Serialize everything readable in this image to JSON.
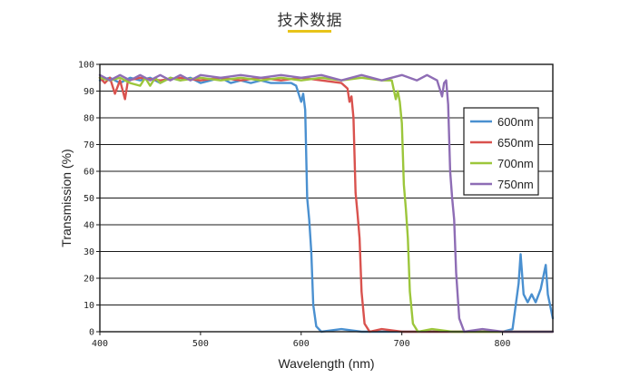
{
  "page": {
    "title": "技术数据",
    "accent_color": "#E8C41A"
  },
  "chart_data": {
    "type": "line",
    "title": "",
    "xlabel": "Wavelength (nm)",
    "ylabel": "Transmission (%)",
    "xlim": [
      400,
      850
    ],
    "ylim": [
      0,
      100
    ],
    "xticks": [
      400,
      500,
      600,
      700,
      800
    ],
    "yticks": [
      0,
      10,
      20,
      30,
      40,
      50,
      60,
      70,
      80,
      90,
      100
    ],
    "grid": "horizontal",
    "legend_position": "right",
    "series": [
      {
        "name": "600nm",
        "color": "#4A90D0",
        "points": [
          [
            400,
            94
          ],
          [
            410,
            95
          ],
          [
            420,
            93
          ],
          [
            430,
            95
          ],
          [
            440,
            94
          ],
          [
            450,
            95
          ],
          [
            460,
            93
          ],
          [
            470,
            95
          ],
          [
            480,
            94
          ],
          [
            490,
            95
          ],
          [
            500,
            93
          ],
          [
            510,
            94
          ],
          [
            520,
            95
          ],
          [
            530,
            93
          ],
          [
            540,
            94
          ],
          [
            550,
            93
          ],
          [
            560,
            94
          ],
          [
            570,
            93
          ],
          [
            580,
            93
          ],
          [
            590,
            93
          ],
          [
            595,
            92
          ],
          [
            600,
            86
          ],
          [
            602,
            89
          ],
          [
            604,
            83
          ],
          [
            606,
            50
          ],
          [
            608,
            42
          ],
          [
            610,
            30
          ],
          [
            612,
            10
          ],
          [
            615,
            2
          ],
          [
            620,
            0
          ],
          [
            640,
            1
          ],
          [
            660,
            0
          ],
          [
            700,
            0
          ],
          [
            750,
            0
          ],
          [
            800,
            0
          ],
          [
            810,
            1
          ],
          [
            816,
            18
          ],
          [
            818,
            29
          ],
          [
            821,
            14
          ],
          [
            825,
            11
          ],
          [
            829,
            14
          ],
          [
            833,
            11
          ],
          [
            838,
            16
          ],
          [
            843,
            25
          ],
          [
            845,
            14
          ],
          [
            850,
            5
          ]
        ]
      },
      {
        "name": "650nm",
        "color": "#D9524E",
        "points": [
          [
            400,
            95
          ],
          [
            405,
            93
          ],
          [
            410,
            95
          ],
          [
            415,
            89
          ],
          [
            420,
            94
          ],
          [
            425,
            87
          ],
          [
            428,
            94
          ],
          [
            440,
            95
          ],
          [
            460,
            94
          ],
          [
            480,
            95
          ],
          [
            500,
            94
          ],
          [
            520,
            95
          ],
          [
            540,
            94
          ],
          [
            560,
            95
          ],
          [
            580,
            94
          ],
          [
            600,
            95
          ],
          [
            620,
            94
          ],
          [
            640,
            93
          ],
          [
            646,
            91
          ],
          [
            648,
            86
          ],
          [
            650,
            88
          ],
          [
            652,
            80
          ],
          [
            654,
            52
          ],
          [
            656,
            44
          ],
          [
            658,
            35
          ],
          [
            660,
            15
          ],
          [
            663,
            3
          ],
          [
            668,
            0
          ],
          [
            680,
            1
          ],
          [
            700,
            0
          ],
          [
            750,
            0
          ],
          [
            800,
            0
          ],
          [
            850,
            0
          ]
        ]
      },
      {
        "name": "700nm",
        "color": "#9CC63B",
        "points": [
          [
            400,
            95
          ],
          [
            410,
            94
          ],
          [
            420,
            95
          ],
          [
            430,
            93
          ],
          [
            440,
            92
          ],
          [
            445,
            95
          ],
          [
            450,
            92
          ],
          [
            455,
            95
          ],
          [
            460,
            93
          ],
          [
            470,
            95
          ],
          [
            480,
            94
          ],
          [
            500,
            95
          ],
          [
            520,
            94
          ],
          [
            540,
            95
          ],
          [
            560,
            94
          ],
          [
            580,
            95
          ],
          [
            600,
            94
          ],
          [
            620,
            95
          ],
          [
            640,
            94
          ],
          [
            660,
            95
          ],
          [
            680,
            94
          ],
          [
            690,
            94
          ],
          [
            694,
            87
          ],
          [
            696,
            90
          ],
          [
            698,
            86
          ],
          [
            700,
            78
          ],
          [
            702,
            55
          ],
          [
            704,
            46
          ],
          [
            706,
            35
          ],
          [
            708,
            15
          ],
          [
            711,
            3
          ],
          [
            716,
            0
          ],
          [
            730,
            1
          ],
          [
            750,
            0
          ],
          [
            800,
            0
          ],
          [
            850,
            0
          ]
        ]
      },
      {
        "name": "750nm",
        "color": "#8E6DB5",
        "points": [
          [
            400,
            96
          ],
          [
            410,
            94
          ],
          [
            420,
            96
          ],
          [
            430,
            94
          ],
          [
            440,
            96
          ],
          [
            450,
            94
          ],
          [
            460,
            96
          ],
          [
            470,
            94
          ],
          [
            480,
            96
          ],
          [
            490,
            94
          ],
          [
            500,
            96
          ],
          [
            520,
            95
          ],
          [
            540,
            96
          ],
          [
            560,
            95
          ],
          [
            580,
            96
          ],
          [
            600,
            95
          ],
          [
            620,
            96
          ],
          [
            640,
            94
          ],
          [
            660,
            96
          ],
          [
            680,
            94
          ],
          [
            700,
            96
          ],
          [
            715,
            94
          ],
          [
            725,
            96
          ],
          [
            735,
            94
          ],
          [
            740,
            88
          ],
          [
            742,
            93
          ],
          [
            744,
            94
          ],
          [
            746,
            85
          ],
          [
            748,
            60
          ],
          [
            750,
            50
          ],
          [
            752,
            42
          ],
          [
            754,
            22
          ],
          [
            757,
            5
          ],
          [
            762,
            0
          ],
          [
            780,
            1
          ],
          [
            800,
            0
          ],
          [
            820,
            0
          ],
          [
            850,
            0
          ]
        ]
      }
    ]
  }
}
